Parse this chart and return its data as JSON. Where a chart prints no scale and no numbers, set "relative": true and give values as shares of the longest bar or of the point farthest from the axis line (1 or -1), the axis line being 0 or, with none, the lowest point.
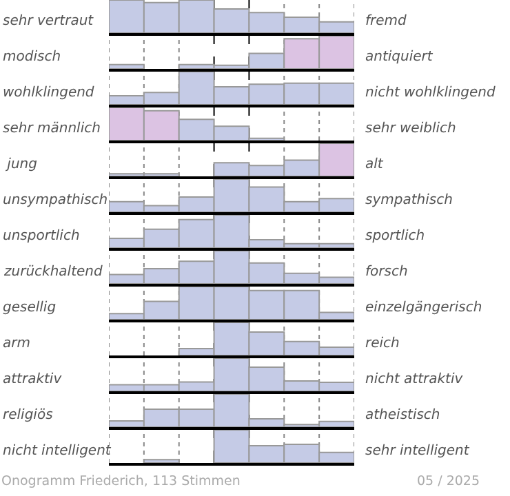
{
  "chart_data": [
    {
      "type": "bar",
      "relative": true,
      "ylabel": "sehr vertraut",
      "y2label": "fremd",
      "categories": [
        null,
        null,
        null,
        null,
        null,
        null,
        null
      ],
      "values": [
        1,
        0.92,
        1,
        0.73,
        0.62,
        0.48,
        0.34
      ],
      "colors": [
        "#c5cbe6",
        "#c5cbe6",
        "#c5cbe6",
        "#c5cbe6",
        "#c5cbe6",
        "#c5cbe6",
        "#c5cbe6"
      ],
      "grid": "x"
    },
    {
      "type": "bar",
      "relative": true,
      "ylabel": "modisch",
      "y2label": "antiquiert",
      "categories": [
        null,
        null,
        null,
        null,
        null,
        null,
        null
      ],
      "values": [
        0.13,
        0,
        0.13,
        0.11,
        0.47,
        0.91,
        1
      ],
      "colors": [
        "#c5cbe6",
        "#c5cbe6",
        "#c5cbe6",
        "#c5cbe6",
        "#c5cbe6",
        "#dcc3e3",
        "#dcc3e3"
      ],
      "grid": "x"
    },
    {
      "type": "bar",
      "relative": true,
      "ylabel": "wohlklingend",
      "y2label": "nicht wohlklingend",
      "categories": [
        null,
        null,
        null,
        null,
        null,
        null,
        null
      ],
      "values": [
        0.27,
        0.37,
        1,
        0.54,
        0.62,
        0.65,
        0.65
      ],
      "colors": [
        "#c5cbe6",
        "#c5cbe6",
        "#c5cbe6",
        "#c5cbe6",
        "#c5cbe6",
        "#c5cbe6",
        "#c5cbe6"
      ],
      "grid": "x"
    },
    {
      "type": "bar",
      "relative": true,
      "ylabel": "sehr männlich",
      "y2label": "sehr weiblich",
      "categories": [
        null,
        null,
        null,
        null,
        null,
        null,
        null
      ],
      "values": [
        1,
        0.9,
        0.64,
        0.43,
        0.07,
        0,
        0
      ],
      "colors": [
        "#dcc3e3",
        "#dcc3e3",
        "#c5cbe6",
        "#c5cbe6",
        "#c5cbe6",
        "#c5cbe6",
        "#c5cbe6"
      ],
      "grid": "x"
    },
    {
      "type": "bar",
      "relative": true,
      "ylabel": " jung",
      "y2label": "alt",
      "categories": [
        null,
        null,
        null,
        null,
        null,
        null,
        null
      ],
      "values": [
        0.08,
        0.08,
        0,
        0.41,
        0.33,
        0.49,
        1
      ],
      "colors": [
        "#c5cbe6",
        "#c5cbe6",
        "#c5cbe6",
        "#c5cbe6",
        "#c5cbe6",
        "#c5cbe6",
        "#dcc3e3"
      ],
      "grid": "x"
    },
    {
      "type": "bar",
      "relative": true,
      "ylabel": "unsympathisch",
      "y2label": "sympathisch",
      "categories": [
        null,
        null,
        null,
        null,
        null,
        null,
        null
      ],
      "values": [
        0.32,
        0.2,
        0.46,
        1,
        0.76,
        0.32,
        0.41
      ],
      "colors": [
        "#c5cbe6",
        "#c5cbe6",
        "#c5cbe6",
        "#c5cbe6",
        "#c5cbe6",
        "#c5cbe6",
        "#c5cbe6"
      ],
      "grid": "x"
    },
    {
      "type": "bar",
      "relative": true,
      "ylabel": "unsportlich",
      "y2label": "sportlich",
      "categories": [
        null,
        null,
        null,
        null,
        null,
        null,
        null
      ],
      "values": [
        0.29,
        0.57,
        0.86,
        1,
        0.25,
        0.13,
        0.13
      ],
      "colors": [
        "#c5cbe6",
        "#c5cbe6",
        "#c5cbe6",
        "#c5cbe6",
        "#c5cbe6",
        "#c5cbe6",
        "#c5cbe6"
      ],
      "grid": "x"
    },
    {
      "type": "bar",
      "relative": true,
      "ylabel": "zurückhaltend",
      "y2label": "forsch",
      "categories": [
        null,
        null,
        null,
        null,
        null,
        null,
        null
      ],
      "values": [
        0.28,
        0.46,
        0.68,
        1,
        0.63,
        0.32,
        0.2
      ],
      "colors": [
        "#c5cbe6",
        "#c5cbe6",
        "#c5cbe6",
        "#c5cbe6",
        "#c5cbe6",
        "#c5cbe6",
        "#c5cbe6"
      ],
      "grid": "x"
    },
    {
      "type": "bar",
      "relative": true,
      "ylabel": "gesellig",
      "y2label": "einzelgängerisch",
      "categories": [
        null,
        null,
        null,
        null,
        null,
        null,
        null
      ],
      "values": [
        0.18,
        0.55,
        1,
        1,
        0.88,
        0.88,
        0.22
      ],
      "colors": [
        "#c5cbe6",
        "#c5cbe6",
        "#c5cbe6",
        "#c5cbe6",
        "#c5cbe6",
        "#c5cbe6",
        "#c5cbe6"
      ],
      "grid": "x"
    },
    {
      "type": "bar",
      "relative": true,
      "ylabel": "arm",
      "y2label": "reich",
      "categories": [
        null,
        null,
        null,
        null,
        null,
        null,
        null
      ],
      "values": [
        0,
        0,
        0.21,
        1,
        0.71,
        0.42,
        0.25
      ],
      "colors": [
        "#c5cbe6",
        "#c5cbe6",
        "#c5cbe6",
        "#c5cbe6",
        "#c5cbe6",
        "#c5cbe6",
        "#c5cbe6"
      ],
      "grid": "x"
    },
    {
      "type": "bar",
      "relative": true,
      "ylabel": "attraktiv",
      "y2label": "nicht attraktiv",
      "categories": [
        null,
        null,
        null,
        null,
        null,
        null,
        null
      ],
      "values": [
        0.2,
        0.2,
        0.28,
        1,
        0.73,
        0.31,
        0.27
      ],
      "colors": [
        "#c5cbe6",
        "#c5cbe6",
        "#c5cbe6",
        "#c5cbe6",
        "#c5cbe6",
        "#c5cbe6",
        "#c5cbe6"
      ],
      "grid": "x"
    },
    {
      "type": "bar",
      "relative": true,
      "ylabel": "religiös",
      "y2label": "atheistisch",
      "categories": [
        null,
        null,
        null,
        null,
        null,
        null,
        null
      ],
      "values": [
        0.19,
        0.54,
        0.54,
        1,
        0.25,
        0.08,
        0.17
      ],
      "colors": [
        "#c5cbe6",
        "#c5cbe6",
        "#c5cbe6",
        "#c5cbe6",
        "#c5cbe6",
        "#c5cbe6",
        "#c5cbe6"
      ],
      "grid": "x"
    },
    {
      "type": "bar",
      "relative": true,
      "ylabel": "nicht intelligent",
      "y2label": "sehr intelligent",
      "categories": [
        null,
        null,
        null,
        null,
        null,
        null,
        null
      ],
      "values": [
        null,
        0.1,
        0,
        1,
        0.52,
        0.56,
        0.32
      ],
      "colors": [
        "#c5cbe6",
        "#c5cbe6",
        "#c5cbe6",
        "#c5cbe6",
        "#c5cbe6",
        "#c5cbe6",
        "#c5cbe6"
      ],
      "grid": "x",
      "annotations": [
        "Onogramm Friederich, 113 Stimmen",
        "05 / 2025"
      ]
    }
  ]
}
